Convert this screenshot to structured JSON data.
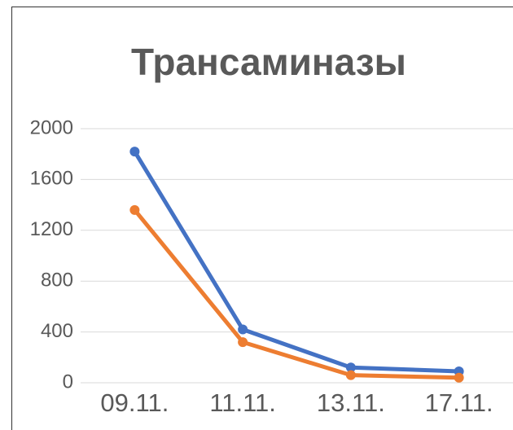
{
  "chart_data": {
    "type": "line",
    "title": "Трансаминазы",
    "categories": [
      "09.11.",
      "11.11.",
      "13.11.",
      "17.11."
    ],
    "series": [
      {
        "color": "#4472c4",
        "values": [
          1820,
          420,
          120,
          90
        ]
      },
      {
        "color": "#ed7d31",
        "values": [
          1360,
          320,
          60,
          40
        ]
      }
    ],
    "ylim": [
      0,
      2000
    ],
    "yticks": [
      0,
      400,
      800,
      1200,
      1600,
      2000
    ],
    "grid": true
  }
}
